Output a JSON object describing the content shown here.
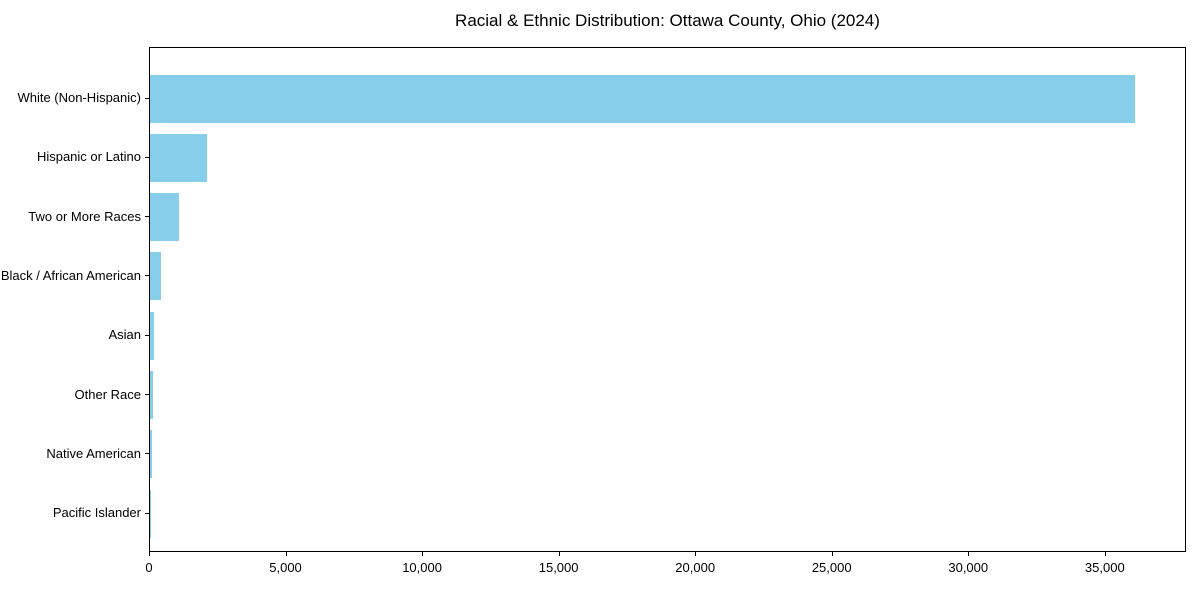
{
  "page": {
    "background_color": "#ffffff"
  },
  "chart_data": {
    "type": "bar",
    "orientation": "horizontal",
    "title": "Racial & Ethnic Distribution: Ottawa County, Ohio (2024)",
    "categories": [
      "White (Non-Hispanic)",
      "Hispanic or Latino",
      "Two or More Races",
      "Black / African American",
      "Asian",
      "Other Race",
      "Native American",
      "Pacific Islander"
    ],
    "values": [
      36050,
      2100,
      1060,
      400,
      150,
      110,
      60,
      15
    ],
    "bar_color": "#87CEEB",
    "axis_color": "#000000",
    "text_color": "#000000",
    "xlabel": "",
    "ylabel": "",
    "xlim": [
      0,
      37900
    ],
    "x_ticks": [
      0,
      5000,
      10000,
      15000,
      20000,
      25000,
      30000,
      35000
    ],
    "x_tick_labels": [
      "0",
      "5,000",
      "10,000",
      "15,000",
      "20,000",
      "25,000",
      "30,000",
      "35,000"
    ],
    "grid": false,
    "legend": "none"
  }
}
